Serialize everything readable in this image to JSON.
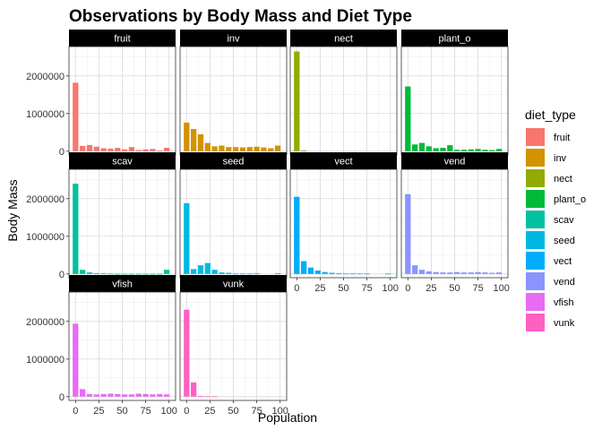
{
  "chart_data": {
    "type": "bar",
    "title": "Observations by Body Mass and Diet Type",
    "xlabel": "Population",
    "ylabel": "Body Mass",
    "facet_by": "diet_type",
    "x": [
      0,
      7.5,
      15,
      22.5,
      30,
      37.5,
      45,
      52.5,
      60,
      67.5,
      75,
      82.5,
      90,
      97.5
    ],
    "xlim": [
      -7,
      107
    ],
    "xticks": [
      0,
      25,
      50,
      75,
      100
    ],
    "xtick_labels": [
      "0",
      "25",
      "50",
      "75",
      "100"
    ],
    "ylim": [
      -100000,
      2780000
    ],
    "yticks": [
      0,
      1000000,
      2000000
    ],
    "ytick_labels": [
      "0",
      "1000000",
      "2000000"
    ],
    "grid": true,
    "legend": {
      "title": "diet_type",
      "position": "right",
      "entries": [
        "fruit",
        "inv",
        "nect",
        "plant_o",
        "scav",
        "seed",
        "vect",
        "vend",
        "vfish",
        "vunk"
      ]
    },
    "series": [
      {
        "name": "fruit",
        "color": "#F8766D",
        "values": [
          1820000,
          140000,
          165000,
          120000,
          80000,
          70000,
          90000,
          50000,
          110000,
          30000,
          50000,
          60000,
          20000,
          90000
        ]
      },
      {
        "name": "inv",
        "color": "#D39200",
        "values": [
          760000,
          590000,
          450000,
          220000,
          130000,
          150000,
          110000,
          110000,
          100000,
          110000,
          120000,
          100000,
          80000,
          150000
        ]
      },
      {
        "name": "nect",
        "color": "#93AA00",
        "values": [
          2650000,
          20000,
          0,
          0,
          0,
          0,
          0,
          0,
          0,
          0,
          0,
          0,
          0,
          0
        ]
      },
      {
        "name": "plant_o",
        "color": "#00BA38",
        "values": [
          1720000,
          180000,
          220000,
          130000,
          80000,
          90000,
          160000,
          40000,
          40000,
          50000,
          60000,
          40000,
          30000,
          60000
        ]
      },
      {
        "name": "scav",
        "color": "#00C19F",
        "values": [
          2400000,
          110000,
          40000,
          20000,
          15000,
          10000,
          5000,
          5000,
          5000,
          5000,
          5000,
          5000,
          5000,
          110000
        ]
      },
      {
        "name": "seed",
        "color": "#00B9E3",
        "values": [
          1880000,
          130000,
          230000,
          290000,
          110000,
          40000,
          30000,
          10000,
          10000,
          10000,
          20000,
          0,
          0,
          20000
        ]
      },
      {
        "name": "vect",
        "color": "#00ADFA",
        "values": [
          2050000,
          340000,
          170000,
          90000,
          50000,
          30000,
          20000,
          10000,
          10000,
          10000,
          10000,
          0,
          0,
          10000
        ]
      },
      {
        "name": "vend",
        "color": "#8B93FF",
        "values": [
          2120000,
          230000,
          110000,
          70000,
          50000,
          40000,
          40000,
          50000,
          40000,
          40000,
          50000,
          40000,
          30000,
          40000
        ]
      },
      {
        "name": "vfish",
        "color": "#E76BF3",
        "values": [
          1940000,
          200000,
          70000,
          60000,
          70000,
          80000,
          70000,
          60000,
          60000,
          80000,
          70000,
          60000,
          70000,
          60000
        ]
      },
      {
        "name": "vunk",
        "color": "#FF61C3",
        "values": [
          2310000,
          380000,
          20000,
          10000,
          10000,
          0,
          0,
          0,
          0,
          0,
          0,
          0,
          0,
          0
        ]
      }
    ]
  }
}
